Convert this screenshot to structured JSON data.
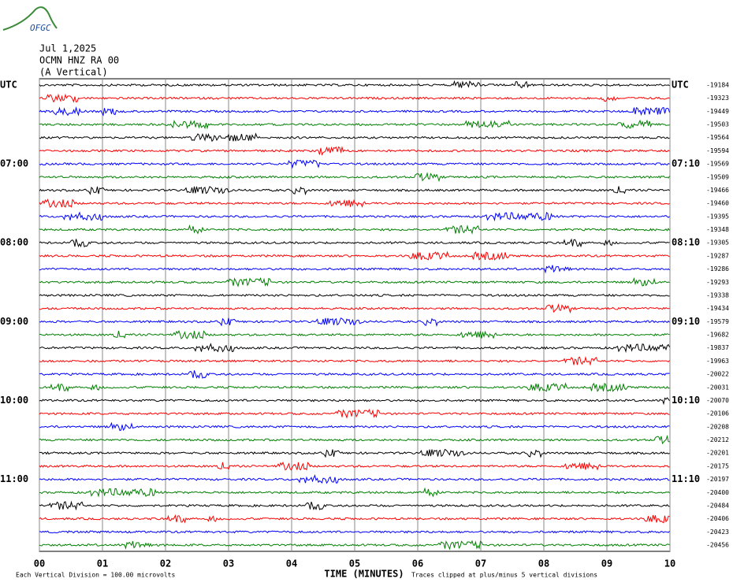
{
  "header": {
    "logo": "OFGC"
  },
  "chart_data": {
    "type": "helicorder",
    "title_lines": [
      "Jul 1,2025",
      "OCMN HNZ RA 00",
      "(A Vertical)"
    ],
    "x_label": "TIME (MINUTES)",
    "scale_note": "Each Vertical Division =  100.00 microvolts",
    "clip_note": "Traces clipped at plus/minus 5 vertical divisions",
    "xlim": [
      0,
      10
    ],
    "xticks": [
      {
        "value": 0,
        "label": "00"
      },
      {
        "value": 1,
        "label": "01"
      },
      {
        "value": 2,
        "label": "02"
      },
      {
        "value": 3,
        "label": "03"
      },
      {
        "value": 4,
        "label": "04"
      },
      {
        "value": 5,
        "label": "05"
      },
      {
        "value": 6,
        "label": "06"
      },
      {
        "value": 7,
        "label": "07"
      },
      {
        "value": 8,
        "label": "08"
      },
      {
        "value": 9,
        "label": "09"
      },
      {
        "value": 10,
        "label": "10"
      }
    ],
    "grid": true,
    "colors": [
      "#000000",
      "#ff0000",
      "#0000ff",
      "#007f00"
    ],
    "left_labels": [
      "UTC",
      null,
      null,
      null,
      null,
      null,
      "07:00",
      null,
      null,
      null,
      null,
      null,
      "08:00",
      null,
      null,
      null,
      null,
      null,
      "09:00",
      null,
      null,
      null,
      null,
      null,
      "10:00",
      null,
      null,
      null,
      null,
      null,
      "11:00",
      null,
      null,
      null,
      null,
      null
    ],
    "right_labels": [
      "UTC",
      null,
      null,
      null,
      null,
      null,
      "07:10",
      null,
      null,
      null,
      null,
      null,
      "08:10",
      null,
      null,
      null,
      null,
      null,
      "09:10",
      null,
      null,
      null,
      null,
      null,
      "10:10",
      null,
      null,
      null,
      null,
      null,
      "11:10",
      null,
      null,
      null,
      null,
      null
    ],
    "row_offsets": [
      -19184,
      -19323,
      -19449,
      -19503,
      -19564,
      -19594,
      -19569,
      -19509,
      -19466,
      -19460,
      -19395,
      -19348,
      -19305,
      -19287,
      -19286,
      -19293,
      -19338,
      -19434,
      -19579,
      -19682,
      -19837,
      -19963,
      -20022,
      -20031,
      -20070,
      -20106,
      -20208,
      -20212,
      -20201,
      -20175,
      -20197,
      -20400,
      -20484,
      -20406,
      -20423,
      -20456
    ]
  }
}
